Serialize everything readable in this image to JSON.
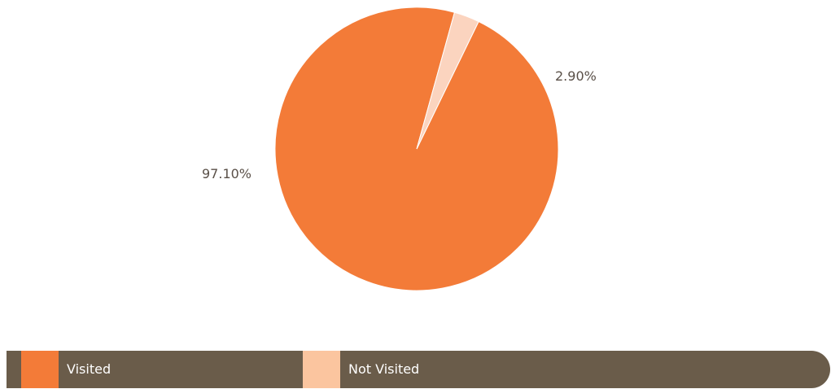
{
  "chart_data": {
    "type": "pie",
    "title": "",
    "slices": [
      {
        "label": "Visited",
        "value": 97.1,
        "value_label": "97.10%",
        "color": "#f37b38"
      },
      {
        "label": "Not Visited",
        "value": 2.9,
        "value_label": "2.90%",
        "color": "#fbd4bf"
      }
    ],
    "legend": {
      "placement": "bottom",
      "background": "#6a5c4a",
      "items": [
        {
          "label": "Visited",
          "color": "#f37b38"
        },
        {
          "label": "Not Visited",
          "color": "#fbc59f"
        }
      ]
    }
  }
}
